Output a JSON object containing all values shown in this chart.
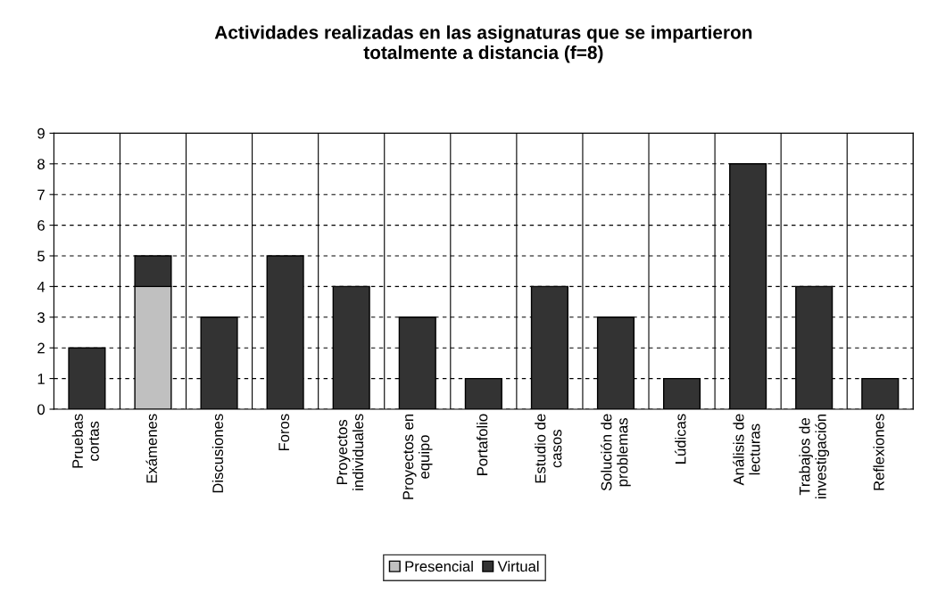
{
  "chart_data": {
    "type": "bar",
    "title": "Actividades realizadas en las asignaturas que se impartieron\ntotalmente a distancia (f=8)",
    "categories": [
      "Pruebas\ncortas",
      "Exámenes",
      "Discusiones",
      "Foros",
      "Proyectos\nindividuales",
      "Proyectos en\nequipo",
      "Portafolio",
      "Estudio de\ncasos",
      "Solución de\nproblemas",
      "Lúdicas",
      "Análisis de\nlecturas",
      "Trabajos de\ninvestigación",
      "Reflexiones"
    ],
    "series": [
      {
        "name": "Presencial",
        "color": "#c0c0c0",
        "values": [
          0,
          4,
          0,
          0,
          0,
          0,
          0,
          0,
          0,
          0,
          0,
          0,
          0
        ]
      },
      {
        "name": "Virtual",
        "color": "#333333",
        "values": [
          2,
          1,
          3,
          5,
          4,
          3,
          1,
          4,
          3,
          1,
          8,
          4,
          1
        ]
      }
    ],
    "stacked": true,
    "ylim": [
      0,
      9
    ],
    "yticks": [
      0,
      1,
      2,
      3,
      4,
      5,
      6,
      7,
      8,
      9
    ],
    "grid": true,
    "legend": "bottom"
  }
}
